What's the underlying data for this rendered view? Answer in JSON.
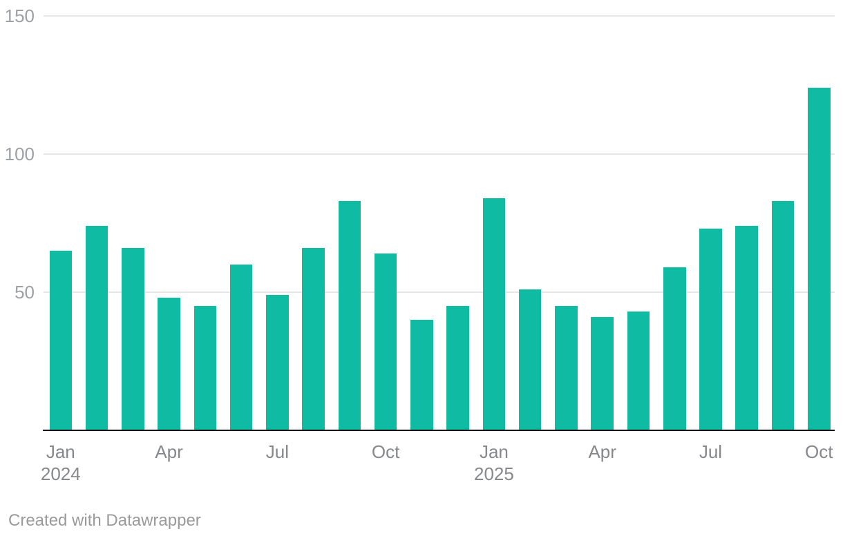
{
  "chart_data": {
    "type": "bar",
    "categories": [
      "Jan 2024",
      "Feb 2024",
      "Mar 2024",
      "Apr 2024",
      "May 2024",
      "Jun 2024",
      "Jul 2024",
      "Aug 2024",
      "Sep 2024",
      "Oct 2024",
      "Nov 2024",
      "Dec 2024",
      "Jan 2025",
      "Feb 2025",
      "Mar 2025",
      "Apr 2025",
      "May 2025",
      "Jun 2025",
      "Jul 2025",
      "Aug 2025",
      "Sep 2025",
      "Oct 2025"
    ],
    "values": [
      65,
      74,
      66,
      48,
      45,
      60,
      49,
      66,
      83,
      64,
      40,
      45,
      84,
      51,
      45,
      41,
      43,
      59,
      73,
      74,
      83,
      124
    ],
    "title": "",
    "xlabel": "",
    "ylabel": "",
    "ylim": [
      0,
      150
    ],
    "yticks": [
      50,
      100,
      150
    ],
    "ytick_labels": [
      "50",
      "100",
      "150"
    ],
    "xticks": [
      {
        "index": 0,
        "label": "Jan",
        "sublabel": "2024"
      },
      {
        "index": 3,
        "label": "Apr"
      },
      {
        "index": 6,
        "label": "Jul"
      },
      {
        "index": 9,
        "label": "Oct"
      },
      {
        "index": 12,
        "label": "Jan",
        "sublabel": "2025"
      },
      {
        "index": 15,
        "label": "Apr"
      },
      {
        "index": 18,
        "label": "Jul"
      },
      {
        "index": 21,
        "label": "Oct"
      }
    ],
    "grid": true,
    "legend": "none",
    "bar_color": "#0fbca3"
  },
  "colors": {
    "background": "#ffffff",
    "gridline": "#e6e6e6",
    "axis_line": "#131315",
    "y_tick_text": "#9ea1a4",
    "x_tick_text": "#86888b",
    "footer_text": "#9a9a9a"
  },
  "footer": {
    "credit": "Created with Datawrapper"
  }
}
